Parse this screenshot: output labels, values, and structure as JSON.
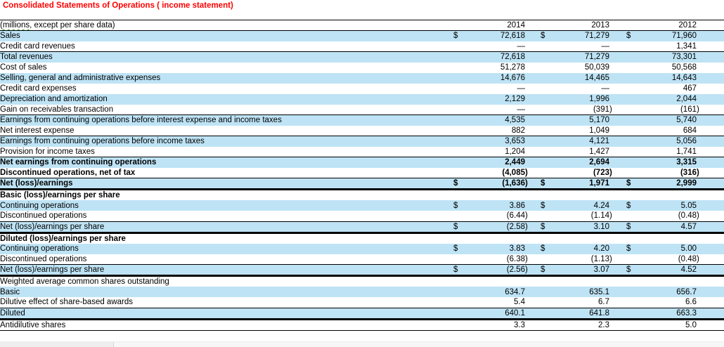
{
  "title": "Consolidated Statements of Operations ( income statement)",
  "colors": {
    "title_red": "#fe0000",
    "row_highlight_blue": "#bee3f5",
    "border_black": "#000000",
    "spellcheck_squiggle_green": "#3a9e3a"
  },
  "table": {
    "currency_symbol": "$",
    "paren_close": ")",
    "header": {
      "label_flagged": "(millions",
      "label_rest": ", except per share data)",
      "years": [
        "2014",
        "2013",
        "2012"
      ]
    },
    "rows": [
      {
        "label": "Sales",
        "shade": true,
        "dollar": true,
        "border": "none",
        "cells": [
          {
            "v": "72,618"
          },
          {
            "v": "71,279"
          },
          {
            "v": "71,960"
          }
        ]
      },
      {
        "label": "Credit card revenues",
        "shade": false,
        "border": "b1",
        "cells": [
          {
            "v": "—"
          },
          {
            "v": "—"
          },
          {
            "v": "1,341"
          }
        ]
      },
      {
        "label": "Total revenues",
        "shade": true,
        "border": "none",
        "cells": [
          {
            "v": "72,618"
          },
          {
            "v": "71,279"
          },
          {
            "v": "73,301"
          }
        ]
      },
      {
        "label": "Cost of sales",
        "shade": false,
        "border": "none",
        "cells": [
          {
            "v": "51,278"
          },
          {
            "v": "50,039"
          },
          {
            "v": "50,568"
          }
        ]
      },
      {
        "label": "Selling, general and administrative expenses",
        "shade": true,
        "border": "none",
        "cells": [
          {
            "v": "14,676"
          },
          {
            "v": "14,465"
          },
          {
            "v": "14,643"
          }
        ]
      },
      {
        "label": "Credit card expenses",
        "shade": false,
        "border": "none",
        "cells": [
          {
            "v": "—"
          },
          {
            "v": "—"
          },
          {
            "v": "467"
          }
        ]
      },
      {
        "label": "Depreciation and amortization",
        "shade": true,
        "border": "none",
        "cells": [
          {
            "v": "2,129"
          },
          {
            "v": "1,996"
          },
          {
            "v": "2,044"
          }
        ]
      },
      {
        "label": "Gain on receivables transaction",
        "shade": false,
        "border": "b1",
        "cells": [
          {
            "v": "—"
          },
          {
            "v": "(391",
            "p": true
          },
          {
            "v": "(161",
            "p": true
          }
        ]
      },
      {
        "label": "Earnings from continuing operations before interest expense and income taxes",
        "shade": true,
        "border": "none",
        "cells": [
          {
            "v": "4,535"
          },
          {
            "v": "5,170"
          },
          {
            "v": "5,740"
          }
        ]
      },
      {
        "label": "Net interest expense",
        "shade": false,
        "border": "b1",
        "cells": [
          {
            "v": "882"
          },
          {
            "v": "1,049"
          },
          {
            "v": "684"
          }
        ]
      },
      {
        "label": "Earnings from continuing operations before income taxes",
        "shade": true,
        "border": "none",
        "cells": [
          {
            "v": "3,653"
          },
          {
            "v": "4,121"
          },
          {
            "v": "5,056"
          }
        ]
      },
      {
        "label": "Provision for income taxes",
        "shade": false,
        "border": "b1",
        "cells": [
          {
            "v": "1,204"
          },
          {
            "v": "1,427"
          },
          {
            "v": "1,741"
          }
        ]
      },
      {
        "label": "Net earnings from continuing operations",
        "shade": true,
        "bold": true,
        "border": "none",
        "cells": [
          {
            "v": "2,449"
          },
          {
            "v": "2,694"
          },
          {
            "v": "3,315"
          }
        ]
      },
      {
        "label": "Discontinued operations, net of tax",
        "shade": false,
        "bold": true,
        "border": "b1",
        "cells": [
          {
            "v": "(4,085",
            "p": true
          },
          {
            "v": "(723",
            "p": true
          },
          {
            "v": "(316",
            "p": true
          }
        ]
      },
      {
        "label": "Net (loss)/earnings",
        "shade": true,
        "bold": true,
        "dollar": true,
        "border": "b3",
        "cells": [
          {
            "v": "(1,636",
            "p": true
          },
          {
            "v": "1,971"
          },
          {
            "v": "2,999"
          }
        ]
      },
      {
        "label": "Basic (loss)/earnings per share",
        "shade": false,
        "bold": true,
        "border": "none",
        "cells": [
          {
            "v": ""
          },
          {
            "v": ""
          },
          {
            "v": ""
          }
        ]
      },
      {
        "label": "Continuing operations",
        "shade": true,
        "dollar": true,
        "border": "none",
        "cells": [
          {
            "v": "3.86"
          },
          {
            "v": "4.24"
          },
          {
            "v": "5.05"
          }
        ]
      },
      {
        "label": "Discontinued operations",
        "shade": false,
        "border": "b1",
        "cells": [
          {
            "v": "(6.44",
            "p": true
          },
          {
            "v": "(1.14",
            "p": true
          },
          {
            "v": "(0.48",
            "p": true
          }
        ]
      },
      {
        "label": "Net (loss)/earnings per share",
        "shade": true,
        "dollar": true,
        "border": "b3",
        "cells": [
          {
            "v": "(2.58",
            "p": true
          },
          {
            "v": "3.10"
          },
          {
            "v": "4.57"
          }
        ]
      },
      {
        "label": "Diluted (loss)/earnings per share",
        "shade": false,
        "bold": true,
        "border": "none",
        "cells": [
          {
            "v": ""
          },
          {
            "v": ""
          },
          {
            "v": ""
          }
        ]
      },
      {
        "label": "Continuing operations",
        "shade": true,
        "dollar": true,
        "border": "none",
        "cells": [
          {
            "v": "3.83"
          },
          {
            "v": "4.20"
          },
          {
            "v": "5.00"
          }
        ]
      },
      {
        "label": "Discontinued operations",
        "shade": false,
        "border": "b1",
        "cells": [
          {
            "v": "(6.38",
            "p": true
          },
          {
            "v": "(1.13",
            "p": true
          },
          {
            "v": "(0.48",
            "p": true
          }
        ]
      },
      {
        "label": "Net (loss)/earnings per share",
        "shade": true,
        "dollar": true,
        "border": "b3",
        "cells": [
          {
            "v": "(2.56",
            "p": true
          },
          {
            "v": "3.07"
          },
          {
            "v": "4.52"
          }
        ]
      },
      {
        "label": "Weighted average common shares outstanding",
        "shade": false,
        "border": "none",
        "cells": [
          {
            "v": ""
          },
          {
            "v": ""
          },
          {
            "v": ""
          }
        ]
      },
      {
        "label": "Basic",
        "shade": true,
        "border": "none",
        "cells": [
          {
            "v": "634.7"
          },
          {
            "v": "635.1"
          },
          {
            "v": "656.7"
          }
        ]
      },
      {
        "label": "Dilutive effect of share-based awards",
        "shade": false,
        "border": "b1",
        "cells": [
          {
            "v": "5.4"
          },
          {
            "v": "6.7"
          },
          {
            "v": "6.6"
          }
        ]
      },
      {
        "label": "Diluted",
        "shade": true,
        "border": "b3",
        "cells": [
          {
            "v": "640.1"
          },
          {
            "v": "641.8"
          },
          {
            "v": "663.3"
          }
        ]
      },
      {
        "label": "Antidilutive shares",
        "shade": false,
        "border": "b1",
        "cells": [
          {
            "v": "3.3"
          },
          {
            "v": "2.3"
          },
          {
            "v": "5.0"
          }
        ]
      }
    ]
  }
}
